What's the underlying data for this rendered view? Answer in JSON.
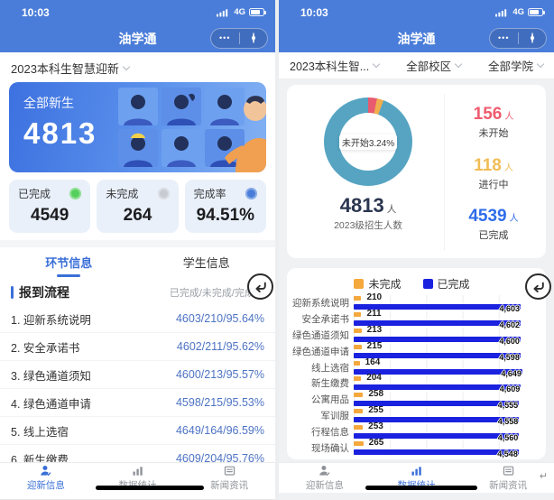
{
  "app": {
    "time": "10:03",
    "network": "4G",
    "title": "油学通",
    "menu_dots": "•••"
  },
  "left": {
    "selector": "2023本科生智慧迎新",
    "hero": {
      "label": "全部新生",
      "value": "4813"
    },
    "stats": [
      {
        "label": "已完成",
        "value": "4549",
        "badge": "#55d05c"
      },
      {
        "label": "未完成",
        "value": "264",
        "badge": "#c7cbd3"
      },
      {
        "label": "完成率",
        "value": "94.51%",
        "badge": "#4a7dd9"
      }
    ],
    "tabs": [
      {
        "label": "环节信息"
      },
      {
        "label": "学生信息"
      }
    ],
    "section_title": "报到流程",
    "columns_hint": "已完成/未完成/完成率",
    "steps": [
      {
        "name": "1. 迎新系统说明",
        "value": "4603/210/95.64%"
      },
      {
        "name": "2. 安全承诺书",
        "value": "4602/211/95.62%"
      },
      {
        "name": "3. 绿色通道须知",
        "value": "4600/213/95.57%"
      },
      {
        "name": "4. 绿色通道申请",
        "value": "4598/215/95.53%"
      },
      {
        "name": "5. 线上选宿",
        "value": "4649/164/96.59%"
      },
      {
        "name": "6. 新生缴费",
        "value": "4609/204/95.76%"
      }
    ]
  },
  "right": {
    "filters": [
      {
        "label": "2023本科生智..."
      },
      {
        "label": "全部校区"
      },
      {
        "label": "全部学院"
      }
    ],
    "donut_label": "未开始3.24%",
    "total": {
      "value": "4813",
      "unit": "人",
      "caption": "2023级招生人数"
    },
    "status_stats": [
      {
        "value": "156",
        "unit": "人",
        "label": "未开始",
        "color": "#ef5c6e"
      },
      {
        "value": "118",
        "unit": "人",
        "label": "进行中",
        "color": "#f0bd55"
      },
      {
        "value": "4539",
        "unit": "人",
        "label": "已完成",
        "color": "#2e6cea"
      }
    ],
    "artifact": "↵"
  },
  "nav": {
    "items": [
      {
        "label": "迎新信息"
      },
      {
        "label": "数据统计"
      },
      {
        "label": "新闻资讯"
      }
    ]
  },
  "chart_data": [
    {
      "type": "pie",
      "subtype": "donut",
      "total": 4813,
      "center_label": "未开始3.24%",
      "slices": [
        {
          "label": "未开始",
          "value": 156,
          "pct": 3.24,
          "color": "#e85a70"
        },
        {
          "label": "进行中",
          "value": 118,
          "pct": 2.45,
          "color": "#f0ad4e"
        },
        {
          "label": "已完成",
          "value": 4539,
          "pct": 94.31,
          "color": "#56a4c2"
        }
      ],
      "caption": "2023级招生人数 4813 人"
    },
    {
      "type": "bar",
      "orientation": "horizontal",
      "grid": true,
      "legend_position": "top",
      "xmax": 5000,
      "categories": [
        "迎新系统说明",
        "安全承诺书",
        "绿色通道须知",
        "绿色通道申请",
        "线上选宿",
        "新生缴费",
        "公寓用品",
        "军训服",
        "行程信息",
        "现场确认"
      ],
      "series": [
        {
          "name": "未完成",
          "color": "#f5a83c",
          "values": [
            210,
            211,
            213,
            215,
            164,
            204,
            258,
            255,
            253,
            265
          ]
        },
        {
          "name": "已完成",
          "color": "#1a21df",
          "values": [
            4603,
            4602,
            4600,
            4598,
            4649,
            4609,
            4555,
            4558,
            4560,
            4548
          ],
          "labels": [
            "4,603",
            "4,602",
            "4,600",
            "4,598",
            "4,649",
            "4,609",
            "4,555",
            "4,558",
            "4,560",
            "4,548"
          ]
        }
      ]
    }
  ]
}
